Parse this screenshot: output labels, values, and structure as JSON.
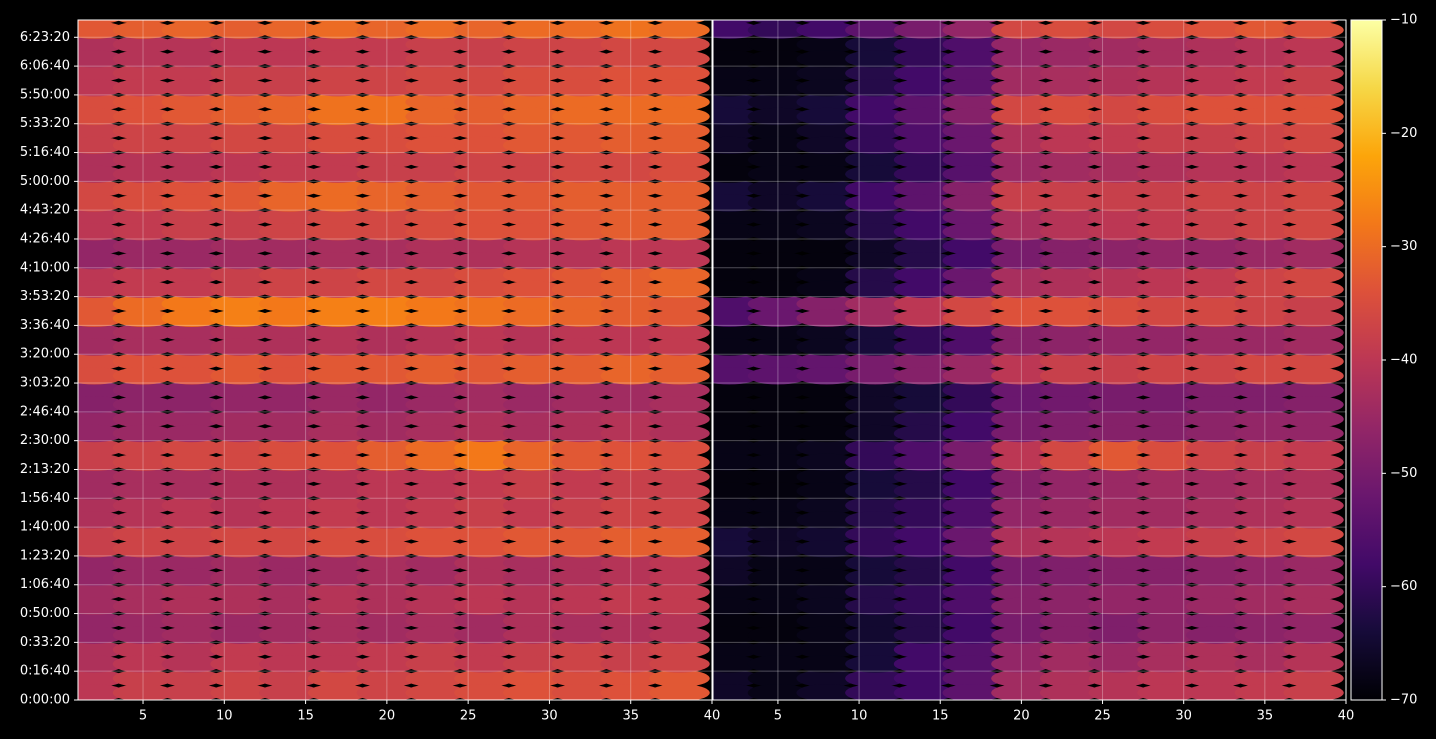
{
  "chart_data": [
    {
      "type": "heatmap",
      "cmap": "inferno",
      "grid": true,
      "x": [
        2,
        5,
        8,
        11,
        14,
        17,
        20,
        23,
        26,
        29,
        32,
        35,
        38
      ],
      "y": [
        500,
        1500,
        2500,
        3500,
        4500,
        5500,
        6500,
        7500,
        8500,
        9500,
        10500,
        11500,
        12500,
        13500,
        14500,
        15500,
        16500,
        17500,
        18500,
        19500,
        20500,
        21500,
        22500,
        23500
      ],
      "xlim": [
        1,
        40
      ],
      "ylim": [
        0,
        23600
      ],
      "xticks": [
        5,
        10,
        15,
        20,
        25,
        30,
        35,
        40
      ],
      "yticks": [
        {
          "value": 0,
          "label": "0:00:00"
        },
        {
          "value": 1000,
          "label": "0:16:40"
        },
        {
          "value": 2000,
          "label": "0:33:20"
        },
        {
          "value": 3000,
          "label": "0:50:00"
        },
        {
          "value": 4000,
          "label": "1:06:40"
        },
        {
          "value": 5000,
          "label": "1:23:20"
        },
        {
          "value": 6000,
          "label": "1:40:00"
        },
        {
          "value": 7000,
          "label": "1:56:40"
        },
        {
          "value": 8000,
          "label": "2:13:20"
        },
        {
          "value": 9000,
          "label": "2:30:00"
        },
        {
          "value": 10000,
          "label": "2:46:40"
        },
        {
          "value": 11000,
          "label": "3:03:20"
        },
        {
          "value": 12000,
          "label": "3:20:00"
        },
        {
          "value": 13000,
          "label": "3:36:40"
        },
        {
          "value": 14000,
          "label": "3:53:20"
        },
        {
          "value": 15000,
          "label": "4:10:00"
        },
        {
          "value": 16000,
          "label": "4:26:40"
        },
        {
          "value": 17000,
          "label": "4:43:20"
        },
        {
          "value": 18000,
          "label": "5:00:00"
        },
        {
          "value": 19000,
          "label": "5:16:40"
        },
        {
          "value": 20000,
          "label": "5:33:20"
        },
        {
          "value": 21000,
          "label": "5:50:00"
        },
        {
          "value": 22000,
          "label": "6:06:40"
        },
        {
          "value": 23000,
          "label": "6:23:20"
        }
      ],
      "z": [
        [
          -40,
          -38,
          -38,
          -37,
          -38,
          -36,
          -37,
          -36,
          -35,
          -34,
          -35,
          -34,
          -33
        ],
        [
          -42,
          -40,
          -41,
          -39,
          -40,
          -40,
          -39,
          -38,
          -39,
          -38,
          -37,
          -38,
          -37
        ],
        [
          -46,
          -45,
          -44,
          -45,
          -44,
          -43,
          -44,
          -43,
          -44,
          -42,
          -43,
          -42,
          -41
        ],
        [
          -44,
          -43,
          -42,
          -42,
          -43,
          -41,
          -42,
          -41,
          -40,
          -41,
          -40,
          -39,
          -39
        ],
        [
          -46,
          -45,
          -45,
          -44,
          -45,
          -44,
          -43,
          -44,
          -42,
          -43,
          -42,
          -41,
          -40
        ],
        [
          -38,
          -37,
          -37,
          -36,
          -36,
          -35,
          -35,
          -34,
          -34,
          -33,
          -33,
          -32,
          -32
        ],
        [
          -42,
          -41,
          -40,
          -41,
          -40,
          -39,
          -40,
          -39,
          -38,
          -39,
          -38,
          -37,
          -37
        ],
        [
          -44,
          -43,
          -43,
          -42,
          -42,
          -41,
          -40,
          -40,
          -39,
          -38,
          -39,
          -38,
          -38
        ],
        [
          -38,
          -37,
          -36,
          -36,
          -35,
          -34,
          -32,
          -30,
          -28,
          -31,
          -33,
          -34,
          -35
        ],
        [
          -46,
          -45,
          -45,
          -44,
          -44,
          -43,
          -44,
          -43,
          -42,
          -43,
          -42,
          -41,
          -42
        ],
        [
          -48,
          -47,
          -47,
          -46,
          -46,
          -45,
          -46,
          -45,
          -44,
          -45,
          -44,
          -44,
          -43
        ],
        [
          -35,
          -34,
          -34,
          -33,
          -34,
          -33,
          -33,
          -32,
          -33,
          -32,
          -32,
          -31,
          -32
        ],
        [
          -44,
          -43,
          -43,
          -42,
          -42,
          -41,
          -42,
          -41,
          -40,
          -41,
          -40,
          -40,
          -39
        ],
        [
          -33,
          -30,
          -28,
          -27,
          -28,
          -27,
          -27,
          -28,
          -29,
          -30,
          -31,
          -32,
          -33
        ],
        [
          -40,
          -39,
          -39,
          -38,
          -37,
          -37,
          -36,
          -36,
          -35,
          -34,
          -33,
          -32,
          -31
        ],
        [
          -46,
          -45,
          -45,
          -44,
          -44,
          -43,
          -43,
          -42,
          -42,
          -41,
          -41,
          -40,
          -40
        ],
        [
          -40,
          -39,
          -38,
          -38,
          -37,
          -36,
          -36,
          -35,
          -34,
          -34,
          -33,
          -32,
          -32
        ],
        [
          -36,
          -35,
          -34,
          -33,
          -31,
          -30,
          -31,
          -32,
          -33,
          -33,
          -32,
          -32,
          -32
        ],
        [
          -42,
          -41,
          -41,
          -40,
          -39,
          -39,
          -38,
          -38,
          -37,
          -37,
          -36,
          -36,
          -35
        ],
        [
          -38,
          -37,
          -37,
          -36,
          -36,
          -35,
          -35,
          -34,
          -34,
          -33,
          -33,
          -32,
          -32
        ],
        [
          -35,
          -34,
          -33,
          -32,
          -31,
          -29,
          -29,
          -31,
          -32,
          -31,
          -30,
          -30,
          -30
        ],
        [
          -40,
          -39,
          -39,
          -38,
          -38,
          -37,
          -37,
          -36,
          -36,
          -35,
          -35,
          -34,
          -34
        ],
        [
          -42,
          -41,
          -41,
          -40,
          -40,
          -39,
          -39,
          -38,
          -38,
          -37,
          -37,
          -36,
          -36
        ],
        [
          -33,
          -32,
          -31,
          -32,
          -31,
          -30,
          -31,
          -30,
          -31,
          -30,
          -30,
          -29,
          -30
        ]
      ]
    },
    {
      "type": "heatmap",
      "cmap": "inferno",
      "grid": true,
      "x": [
        2,
        5,
        8,
        11,
        14,
        17,
        20,
        23,
        26,
        29,
        32,
        35,
        38
      ],
      "y": [
        500,
        1500,
        2500,
        3500,
        4500,
        5500,
        6500,
        7500,
        8500,
        9500,
        10500,
        11500,
        12500,
        13500,
        14500,
        15500,
        16500,
        17500,
        18500,
        19500,
        20500,
        21500,
        22500,
        23500
      ],
      "xlim": [
        1,
        40
      ],
      "ylim": [
        0,
        23600
      ],
      "xticks": [
        5,
        10,
        15,
        20,
        25,
        30,
        35,
        40
      ],
      "yticks": [
        0,
        1000,
        2000,
        3000,
        4000,
        5000,
        6000,
        7000,
        8000,
        9000,
        10000,
        11000,
        12000,
        13000,
        14000,
        15000,
        16000,
        17000,
        18000,
        19000,
        20000,
        21000,
        22000,
        23000
      ],
      "z": [
        [
          -66,
          -68,
          -66,
          -60,
          -58,
          -54,
          -44,
          -42,
          -41,
          -40,
          -40,
          -39,
          -38
        ],
        [
          -68,
          -68,
          -68,
          -64,
          -58,
          -55,
          -46,
          -44,
          -45,
          -43,
          -42,
          -43,
          -41
        ],
        [
          -69,
          -69,
          -68,
          -65,
          -62,
          -58,
          -50,
          -48,
          -49,
          -47,
          -48,
          -47,
          -46
        ],
        [
          -68,
          -68,
          -67,
          -62,
          -60,
          -56,
          -48,
          -47,
          -46,
          -46,
          -45,
          -44,
          -43
        ],
        [
          -66,
          -68,
          -68,
          -64,
          -62,
          -58,
          -50,
          -49,
          -48,
          -48,
          -47,
          -46,
          -45
        ],
        [
          -64,
          -66,
          -65,
          -60,
          -58,
          -52,
          -42,
          -41,
          -40,
          -39,
          -38,
          -37,
          -36
        ],
        [
          -68,
          -68,
          -67,
          -62,
          -60,
          -56,
          -46,
          -45,
          -44,
          -44,
          -43,
          -42,
          -41
        ],
        [
          -69,
          -69,
          -68,
          -64,
          -62,
          -58,
          -48,
          -46,
          -45,
          -44,
          -44,
          -43,
          -42
        ],
        [
          -68,
          -68,
          -67,
          -60,
          -56,
          -50,
          -40,
          -36,
          -33,
          -35,
          -37,
          -38,
          -39
        ],
        [
          -69,
          -69,
          -69,
          -66,
          -62,
          -58,
          -50,
          -49,
          -48,
          -48,
          -47,
          -46,
          -46
        ],
        [
          -69,
          -69,
          -69,
          -66,
          -64,
          -60,
          -52,
          -51,
          -50,
          -50,
          -49,
          -49,
          -48
        ],
        [
          -55,
          -54,
          -53,
          -50,
          -48,
          -45,
          -40,
          -38,
          -38,
          -37,
          -37,
          -36,
          -36
        ],
        [
          -68,
          -68,
          -67,
          -64,
          -60,
          -56,
          -48,
          -47,
          -46,
          -46,
          -45,
          -45,
          -44
        ],
        [
          -56,
          -52,
          -48,
          -44,
          -40,
          -36,
          -34,
          -34,
          -35,
          -36,
          -36,
          -37,
          -38
        ],
        [
          -69,
          -69,
          -68,
          -62,
          -58,
          -52,
          -43,
          -42,
          -41,
          -40,
          -39,
          -37,
          -36
        ],
        [
          -69,
          -69,
          -69,
          -66,
          -62,
          -58,
          -50,
          -48,
          -47,
          -46,
          -46,
          -45,
          -44
        ],
        [
          -68,
          -68,
          -67,
          -62,
          -58,
          -52,
          -43,
          -41,
          -40,
          -39,
          -38,
          -37,
          -36
        ],
        [
          -64,
          -66,
          -64,
          -58,
          -54,
          -48,
          -38,
          -38,
          -38,
          -38,
          -37,
          -37,
          -36
        ],
        [
          -69,
          -68,
          -68,
          -64,
          -60,
          -55,
          -45,
          -44,
          -43,
          -42,
          -41,
          -41,
          -40
        ],
        [
          -66,
          -68,
          -66,
          -60,
          -56,
          -52,
          -42,
          -40,
          -39,
          -38,
          -38,
          -37,
          -36
        ],
        [
          -64,
          -66,
          -64,
          -58,
          -54,
          -48,
          -36,
          -35,
          -36,
          -35,
          -34,
          -34,
          -34
        ],
        [
          -68,
          -68,
          -67,
          -62,
          -58,
          -54,
          -44,
          -43,
          -42,
          -41,
          -40,
          -39,
          -38
        ],
        [
          -69,
          -69,
          -68,
          -64,
          -60,
          -56,
          -46,
          -45,
          -44,
          -43,
          -42,
          -41,
          -40
        ],
        [
          -58,
          -60,
          -58,
          -54,
          -50,
          -46,
          -36,
          -35,
          -36,
          -35,
          -34,
          -33,
          -34
        ]
      ]
    },
    {
      "type": "colorbar",
      "cmap": "inferno",
      "clim": [
        -70,
        -10
      ],
      "cticks": [
        {
          "value": -70,
          "label": "−70"
        },
        {
          "value": -60,
          "label": "−60"
        },
        {
          "value": -50,
          "label": "−50"
        },
        {
          "value": -40,
          "label": "−40"
        },
        {
          "value": -30,
          "label": "−30"
        },
        {
          "value": -20,
          "label": "−20"
        },
        {
          "value": -10,
          "label": "−10"
        }
      ]
    }
  ]
}
